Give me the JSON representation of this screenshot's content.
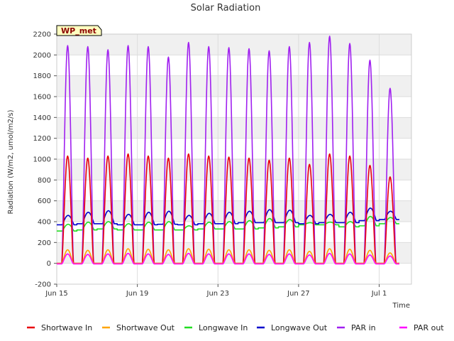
{
  "chart_data": {
    "type": "line",
    "title": "Solar Radiation",
    "xlabel": "Time",
    "ylabel": "Radiation (W/m2, umol/m2/s)",
    "station_label": "WP_met",
    "ylim": [
      -200,
      2200
    ],
    "yticks": [
      -200,
      0,
      200,
      400,
      600,
      800,
      1000,
      1200,
      1400,
      1600,
      1800,
      2000,
      2200
    ],
    "xlim": [
      0,
      17.6
    ],
    "x_unit": "days since Jun 15",
    "xticks": [
      {
        "value": 0,
        "label": "Jun 15"
      },
      {
        "value": 4,
        "label": "Jun 19"
      },
      {
        "value": 8,
        "label": "Jun 23"
      },
      {
        "value": 12,
        "label": "Jun 27"
      },
      {
        "value": 16,
        "label": "Jul 1"
      }
    ],
    "grid": true,
    "legend_position": "bottom",
    "days": 17,
    "series": [
      {
        "name": "Shortwave In",
        "color": "#e8000b",
        "kind": "diurnal",
        "daily_peak": [
          1030,
          1010,
          1030,
          1050,
          1030,
          1010,
          1050,
          1030,
          1020,
          1010,
          990,
          1010,
          950,
          1050,
          1030,
          940,
          830
        ],
        "night": 0
      },
      {
        "name": "Shortwave Out",
        "color": "#ffa500",
        "kind": "diurnal",
        "daily_peak": [
          130,
          125,
          130,
          140,
          135,
          130,
          140,
          135,
          130,
          130,
          125,
          130,
          115,
          140,
          135,
          125,
          100
        ],
        "night": 0
      },
      {
        "name": "Longwave In",
        "color": "#22dd22",
        "kind": "longwave",
        "daily_min": [
          310,
          320,
          330,
          320,
          320,
          320,
          320,
          330,
          330,
          330,
          340,
          350,
          370,
          370,
          350,
          360,
          380
        ],
        "daily_max": [
          375,
          395,
          400,
          380,
          395,
          400,
          360,
          395,
          400,
          410,
          430,
          420,
          390,
          395,
          400,
          450,
          440
        ]
      },
      {
        "name": "Longwave Out",
        "color": "#0000cc",
        "kind": "longwave",
        "daily_min": [
          370,
          380,
          380,
          370,
          370,
          375,
          370,
          380,
          380,
          390,
          390,
          390,
          380,
          390,
          390,
          410,
          420
        ],
        "daily_max": [
          460,
          490,
          505,
          470,
          490,
          500,
          460,
          480,
          490,
          500,
          515,
          510,
          460,
          470,
          490,
          530,
          500
        ]
      },
      {
        "name": "PAR in",
        "color": "#a020f0",
        "kind": "diurnal",
        "daily_peak": [
          2090,
          2080,
          2050,
          2090,
          2080,
          1980,
          2120,
          2080,
          2070,
          2060,
          2040,
          2080,
          2120,
          2180,
          2110,
          1950,
          1680
        ],
        "night": 0
      },
      {
        "name": "PAR out",
        "color": "#ff00ff",
        "kind": "diurnal",
        "daily_peak": [
          90,
          85,
          90,
          95,
          90,
          85,
          95,
          90,
          90,
          90,
          85,
          90,
          80,
          95,
          90,
          80,
          70
        ],
        "night": -5
      }
    ]
  }
}
